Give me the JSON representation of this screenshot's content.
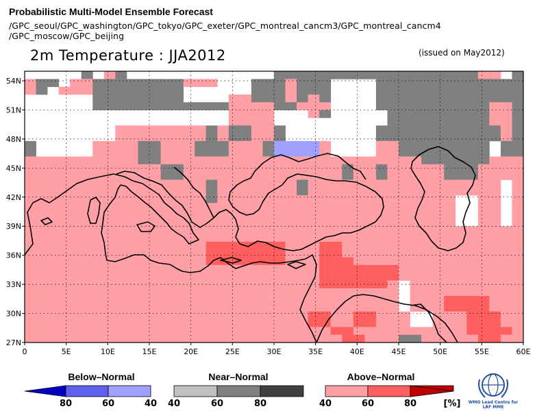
{
  "header": {
    "title": "Probabilistic Multi-Model Ensemble Forecast",
    "models_line1": "/GPC_seoul/GPC_washington/GPC_tokyo/GPC_exeter/GPC_montreal_cancm3/GPC_montreal_cancm4",
    "models_line2": "/GPC_moscow/GPC_beijing",
    "main_title": "2m Temperature : JJA2012",
    "issued": "(issued on May2012)"
  },
  "map": {
    "lon_labels": [
      "0",
      "5E",
      "10E",
      "15E",
      "20E",
      "25E",
      "30E",
      "35E",
      "40E",
      "45E",
      "50E",
      "55E",
      "60E"
    ],
    "lat_labels": [
      "54N",
      "51N",
      "48N",
      "45N",
      "42N",
      "39N",
      "36N",
      "33N",
      "30N",
      "27N"
    ],
    "colors": {
      "above_light": "#ffa0a6",
      "above_mid": "#ff5f5f",
      "above_dark": "#c00000",
      "near_light": "#c0c0c0",
      "near_mid": "#808080",
      "near_dark": "#404040",
      "below_light": "#a0a0ff",
      "below_mid": "#6060f0",
      "below_dark": "#0000c0",
      "no_signal": "#ffffff"
    }
  },
  "legend": {
    "below": {
      "title": "Below–Normal",
      "labels": [
        "80",
        "60",
        "40"
      ]
    },
    "near": {
      "title": "Near–Normal",
      "labels": [
        "40",
        "60",
        "80"
      ]
    },
    "above": {
      "title": "Above–Normal",
      "labels": [
        "40",
        "60",
        "80"
      ],
      "unit": "[%]"
    },
    "logo_text_1": "WMO Lead Centre for",
    "logo_text_2": "LRF MME"
  }
}
